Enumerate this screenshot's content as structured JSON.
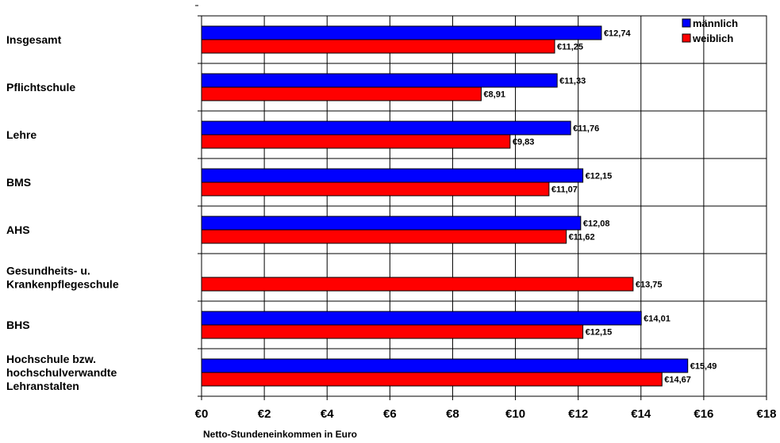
{
  "chart_data": {
    "type": "bar",
    "orientation": "horizontal",
    "categories": [
      [
        "Insgesamt"
      ],
      [
        "Pflichtschule"
      ],
      [
        "Lehre"
      ],
      [
        "BMS"
      ],
      [
        "AHS"
      ],
      [
        "Gesundheits- u.",
        "Krankenpflegeschule"
      ],
      [
        "BHS"
      ],
      [
        "Hochschule bzw.",
        "hochschulverwandte",
        "Lehranstalten"
      ]
    ],
    "series": [
      {
        "name": "männlich",
        "color": "#0000ff",
        "values": [
          12.74,
          11.33,
          11.76,
          12.15,
          12.08,
          null,
          14.01,
          15.49
        ],
        "labels": [
          "€12,74",
          "€11,33",
          "€11,76",
          "€12,15",
          "€12,08",
          "",
          "€14,01",
          "€15,49"
        ]
      },
      {
        "name": "weiblich",
        "color": "#ff0000",
        "values": [
          11.25,
          8.91,
          9.83,
          11.07,
          11.62,
          13.75,
          12.15,
          14.67
        ],
        "labels": [
          "€11,25",
          "€8,91",
          "€9,83",
          "€11,07",
          "€11,62",
          "€13,75",
          "€12,15",
          "€14,67"
        ]
      }
    ],
    "xlim": [
      0,
      18
    ],
    "x_ticks": [
      0,
      2,
      4,
      6,
      8,
      10,
      12,
      14,
      16,
      18
    ],
    "x_tick_labels": [
      "€0",
      "€2",
      "€4",
      "€6",
      "€8",
      "€10",
      "€12",
      "€14",
      "€16",
      "€18"
    ],
    "xlabel": "Netto-Stundeneinkommen in Euro",
    "ylabel": "",
    "title": "",
    "grid": true,
    "legend_position": "top-right"
  }
}
